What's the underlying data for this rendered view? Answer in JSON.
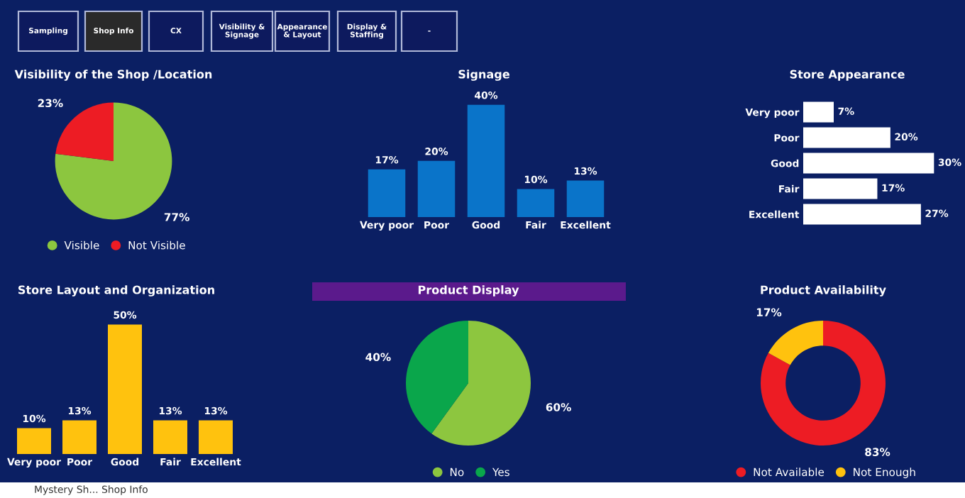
{
  "chart_data": [
    {
      "type": "other",
      "annotations": [
        "Sampling",
        "Shop Info",
        "CX",
        "Visibility &\nSignage",
        "Appearance\n& Layout",
        "Display &\nStaffing",
        "-"
      ]
    },
    {
      "type": "pie",
      "title": "Visibility of the Shop /Location",
      "categories": [
        "Visible",
        "Not Visible"
      ],
      "values": [
        77,
        23
      ],
      "colors": [
        "#8cc63f",
        "#ed1c24"
      ],
      "value_labels": [
        "77%",
        "23%"
      ],
      "legend": "bottom"
    },
    {
      "type": "bar",
      "title": "Signage",
      "categories": [
        "Very poor",
        "Poor",
        "Good",
        "Fair",
        "Excellent"
      ],
      "values": [
        17,
        20,
        40,
        10,
        13
      ],
      "colors": [
        "#0a74c9",
        "#0a74c9",
        "#0a74c9",
        "#0a74c9",
        "#0a74c9"
      ],
      "value_labels": [
        "17%",
        "20%",
        "40%",
        "10%",
        "13%"
      ],
      "tick_labels": "x"
    },
    {
      "type": "bar",
      "orientation": "horizontal",
      "title": "Store Appearance",
      "categories": [
        "Very poor",
        "Poor",
        "Good",
        "Fair",
        "Excellent"
      ],
      "values": [
        7,
        20,
        30,
        17,
        27
      ],
      "colors": [
        "#ffffff",
        "#ffffff",
        "#ffffff",
        "#ffffff",
        "#ffffff"
      ],
      "value_labels": [
        "7%",
        "20%",
        "30%",
        "17%",
        "27%"
      ],
      "tick_labels": "y"
    },
    {
      "type": "bar",
      "title": "Store Layout and Organization",
      "categories": [
        "Very poor",
        "Poor",
        "Good",
        "Fair",
        "Excellent"
      ],
      "values": [
        10,
        13,
        50,
        13,
        13
      ],
      "colors": [
        "#ffc20e",
        "#ffc20e",
        "#ffc20e",
        "#ffc20e",
        "#ffc20e"
      ],
      "value_labels": [
        "10%",
        "13%",
        "50%",
        "13%",
        "13%"
      ],
      "tick_labels": "x"
    },
    {
      "type": "pie",
      "title": "Product Display",
      "categories": [
        "No",
        "Yes"
      ],
      "values": [
        60,
        40
      ],
      "colors": [
        "#8dc63f",
        "#0aa64b"
      ],
      "value_labels": [
        "60%",
        "40%"
      ],
      "legend": "bottom"
    },
    {
      "type": "donut",
      "title": "Product Availability",
      "categories": [
        "Not Available",
        "Not Enough"
      ],
      "values": [
        83,
        17
      ],
      "colors": [
        "#ed1c24",
        "#ffc20e"
      ],
      "value_labels": [
        "83%",
        "17%"
      ],
      "legend": "bottom"
    },
    {
      "type": "other",
      "annotations": [
        "Mystery Sh... Shop Info"
      ]
    }
  ]
}
